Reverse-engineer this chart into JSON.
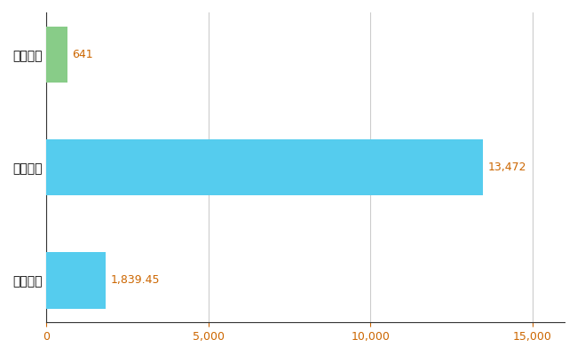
{
  "categories": [
    "全国平均",
    "全国最大",
    "和歌山県"
  ],
  "values": [
    1839.45,
    13472,
    641
  ],
  "colors": [
    "#55CCEE",
    "#55CCEE",
    "#88CC88"
  ],
  "labels": [
    "1,839.45",
    "13,472",
    "641"
  ],
  "xlim": [
    0,
    16000
  ],
  "xticks": [
    0,
    5000,
    10000,
    15000
  ],
  "background_color": "#FFFFFF",
  "grid_color": "#CCCCCC",
  "label_color": "#CC6600",
  "bar_height": 0.5,
  "figsize": [
    6.5,
    4.0
  ],
  "dpi": 100
}
